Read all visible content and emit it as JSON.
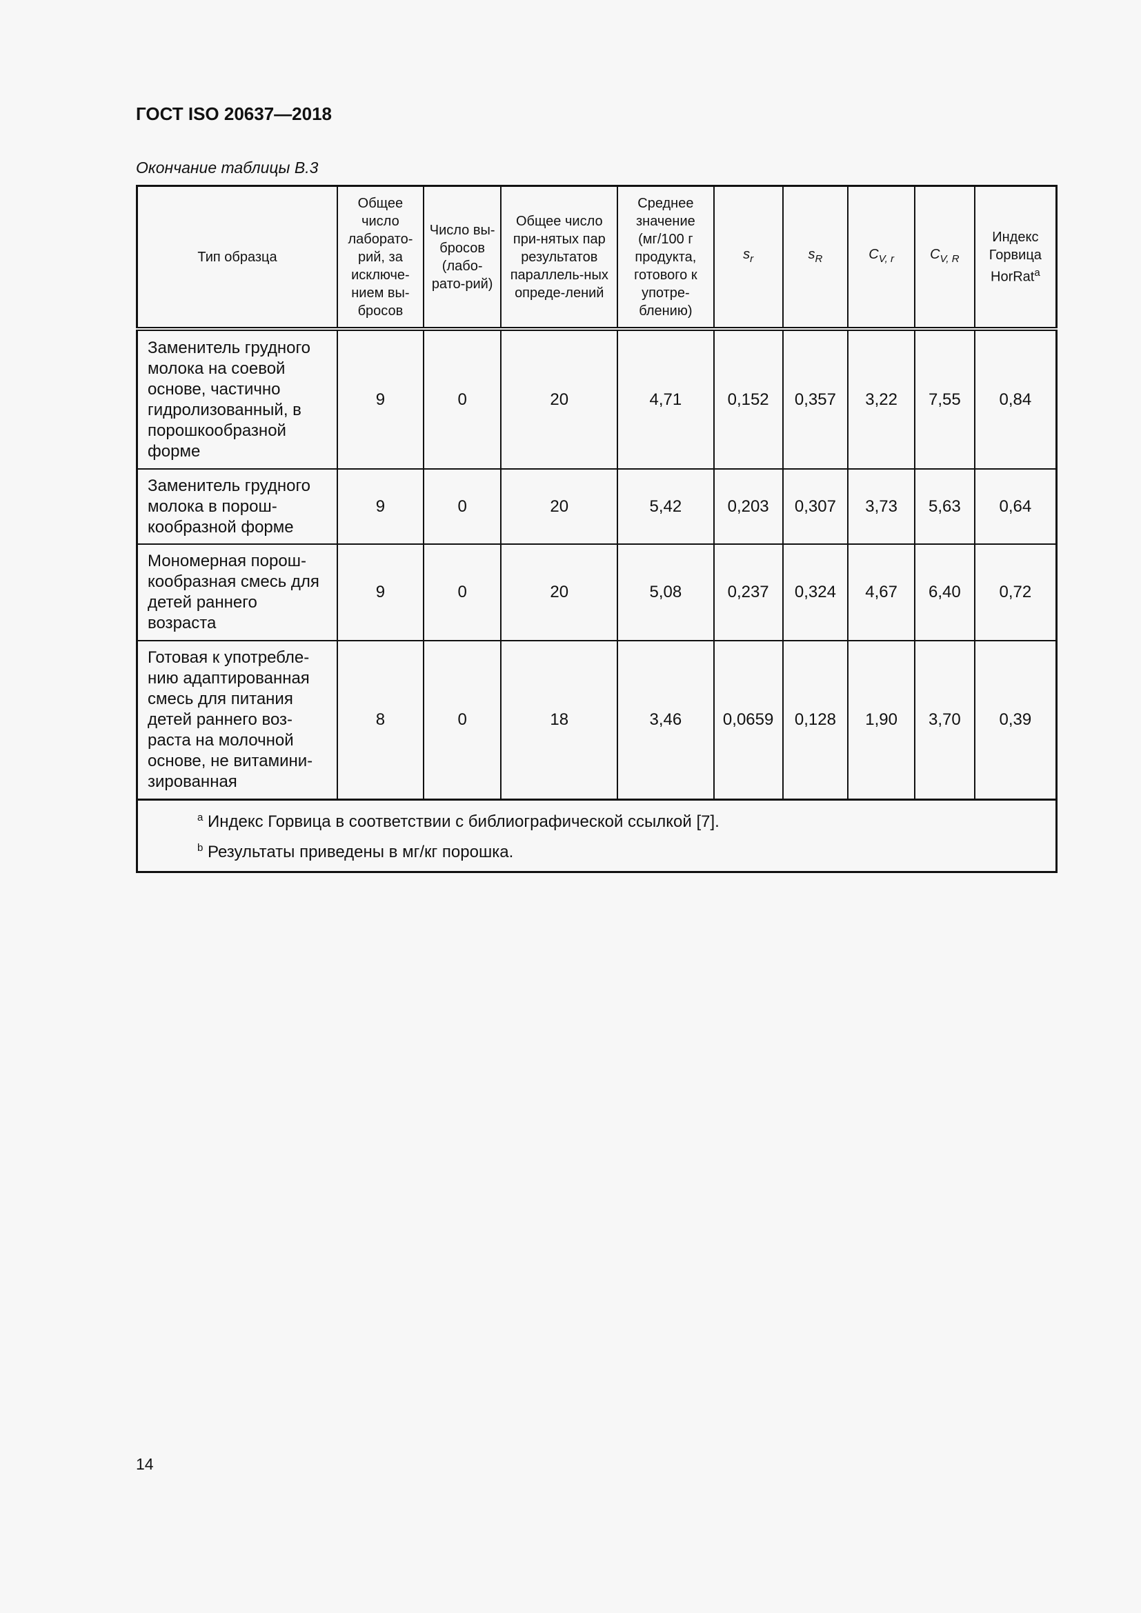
{
  "header": {
    "title": "ГОСТ ISO 20637—2018",
    "caption": "Окончание таблицы В.3"
  },
  "table": {
    "columns": [
      "Тип образца",
      "Общее число лаборато-рий, за исключе-нием вы-бросов",
      "Число вы-бросов (лабо-рато-рий)",
      "Общее число при-нятых пар результатов параллель-ных опреде-лений",
      "Среднее значение (мг/100 г продукта, готового к употре-блению)",
      {
        "base": "s",
        "sub": "r"
      },
      {
        "base": "s",
        "sub": "R"
      },
      {
        "base": "C",
        "sub": "V, r"
      },
      {
        "base": "C",
        "sub": "V, R"
      },
      {
        "text": "Индекс Горвица HorRat",
        "sup": "a"
      }
    ],
    "rows": [
      [
        "Заменитель грудного молока на соевой основе, частично гидролизованный, в порошкообразной форме",
        "9",
        "0",
        "20",
        "4,71",
        "0,152",
        "0,357",
        "3,22",
        "7,55",
        "0,84"
      ],
      [
        "Заменитель грудного молока в порош-кообразной форме",
        "9",
        "0",
        "20",
        "5,42",
        "0,203",
        "0,307",
        "3,73",
        "5,63",
        "0,64"
      ],
      [
        "Мономерная порош-кообразная смесь для детей раннего возраста",
        "9",
        "0",
        "20",
        "5,08",
        "0,237",
        "0,324",
        "4,67",
        "6,40",
        "0,72"
      ],
      [
        "Готовая к употребле-нию адаптированная смесь для питания детей раннего воз-раста на молочной основе, не витамини-зированная",
        "8",
        "0",
        "18",
        "3,46",
        "0,0659",
        "0,128",
        "1,90",
        "3,70",
        "0,39"
      ]
    ],
    "footnotes": [
      {
        "mark": "a",
        "text": "Индекс Горвица в соответствии с библиографической ссылкой [7]."
      },
      {
        "mark": "b",
        "text": "Результаты приведены в мг/кг порошка."
      }
    ]
  },
  "footer": {
    "page_number": "14"
  }
}
